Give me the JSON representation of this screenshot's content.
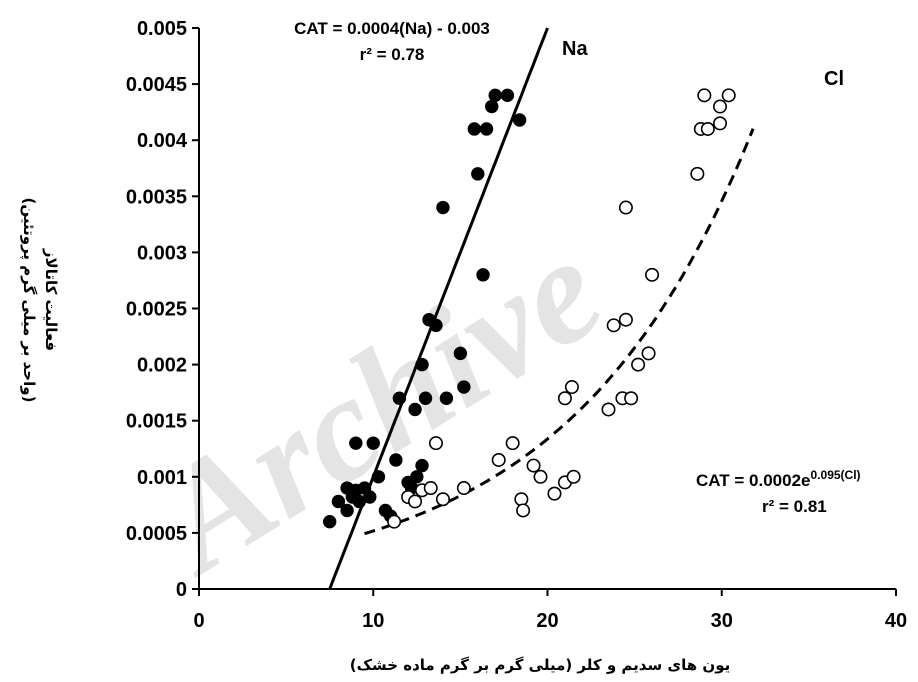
{
  "watermark": "Archive",
  "chart_data": {
    "type": "scatter",
    "xlabel": "یون های سدیم و کلر (میلی گرم بر گرم ماده خشک)",
    "ylabel_line1": "فعالیت کاتالاز",
    "ylabel_line2": "(واحد بر میلی گرم پروتئین)",
    "xlim": [
      0,
      40
    ],
    "ylim": [
      0,
      0.005
    ],
    "x_ticks": [
      "0",
      "10",
      "20",
      "30",
      "40"
    ],
    "y_ticks": [
      "0",
      "0.0005",
      "0.001",
      "0.0015",
      "0.002",
      "0.0025",
      "0.003",
      "0.0035",
      "0.004",
      "0.0045",
      "0.005"
    ],
    "series": [
      {
        "name": "Na",
        "marker": "filled-circle",
        "color": "#000000",
        "points": [
          [
            7.5,
            0.0006
          ],
          [
            8.0,
            0.00078
          ],
          [
            8.5,
            0.0007
          ],
          [
            8.5,
            0.0009
          ],
          [
            8.8,
            0.00082
          ],
          [
            9.0,
            0.00088
          ],
          [
            9.2,
            0.00078
          ],
          [
            9.5,
            0.0009
          ],
          [
            9.8,
            0.00082
          ],
          [
            9.0,
            0.0013
          ],
          [
            10.0,
            0.0013
          ],
          [
            10.3,
            0.001
          ],
          [
            10.7,
            0.0007
          ],
          [
            11.0,
            0.00065
          ],
          [
            11.3,
            0.00115
          ],
          [
            11.5,
            0.0017
          ],
          [
            12.0,
            0.00095
          ],
          [
            12.2,
            0.0009
          ],
          [
            12.4,
            0.0016
          ],
          [
            12.5,
            0.001
          ],
          [
            12.8,
            0.0011
          ],
          [
            12.8,
            0.002
          ],
          [
            13.0,
            0.0017
          ],
          [
            13.2,
            0.0024
          ],
          [
            13.6,
            0.00235
          ],
          [
            14.0,
            0.0034
          ],
          [
            14.2,
            0.0017
          ],
          [
            15.0,
            0.0021
          ],
          [
            15.2,
            0.0018
          ],
          [
            15.8,
            0.0041
          ],
          [
            16.0,
            0.0037
          ],
          [
            16.3,
            0.0028
          ],
          [
            16.5,
            0.0041
          ],
          [
            16.8,
            0.0043
          ],
          [
            17.0,
            0.0044
          ],
          [
            17.7,
            0.0044
          ],
          [
            18.4,
            0.00418
          ]
        ]
      },
      {
        "name": "Cl",
        "marker": "open-circle",
        "color": "#000000",
        "points": [
          [
            11.2,
            0.0006
          ],
          [
            12.0,
            0.00082
          ],
          [
            12.4,
            0.00078
          ],
          [
            12.8,
            0.00088
          ],
          [
            13.3,
            0.0009
          ],
          [
            13.6,
            0.0013
          ],
          [
            14.0,
            0.0008
          ],
          [
            15.2,
            0.0009
          ],
          [
            17.2,
            0.00115
          ],
          [
            18.0,
            0.0013
          ],
          [
            18.5,
            0.0008
          ],
          [
            18.6,
            0.0007
          ],
          [
            19.2,
            0.0011
          ],
          [
            19.6,
            0.001
          ],
          [
            20.4,
            0.00085
          ],
          [
            21.0,
            0.00095
          ],
          [
            21.0,
            0.0017
          ],
          [
            21.4,
            0.0018
          ],
          [
            21.5,
            0.001
          ],
          [
            23.5,
            0.0016
          ],
          [
            23.8,
            0.00235
          ],
          [
            24.3,
            0.0017
          ],
          [
            24.5,
            0.0034
          ],
          [
            24.5,
            0.0024
          ],
          [
            24.8,
            0.0017
          ],
          [
            25.2,
            0.002
          ],
          [
            25.8,
            0.0021
          ],
          [
            26.0,
            0.0028
          ],
          [
            28.6,
            0.0037
          ],
          [
            28.8,
            0.0041
          ],
          [
            29.2,
            0.0041
          ],
          [
            29.0,
            0.0044
          ],
          [
            29.9,
            0.00415
          ],
          [
            29.9,
            0.0043
          ],
          [
            30.4,
            0.0044
          ]
        ]
      }
    ],
    "fits": [
      {
        "series": "Na",
        "kind": "linear",
        "style": "solid",
        "x_range": [
          7.5,
          20.0
        ],
        "equation": "CAT = 0.0004(Na) - 0.003",
        "r2_text": "r² = 0.78"
      },
      {
        "series": "Cl",
        "kind": "exponential",
        "style": "dashed",
        "x_range": [
          9.5,
          31.8
        ],
        "equation_main": "CAT = 0.0002e",
        "equation_exp": "0.095(Cl)",
        "r2_text": "r² = 0.81"
      }
    ],
    "grid": false,
    "legend": "none"
  }
}
